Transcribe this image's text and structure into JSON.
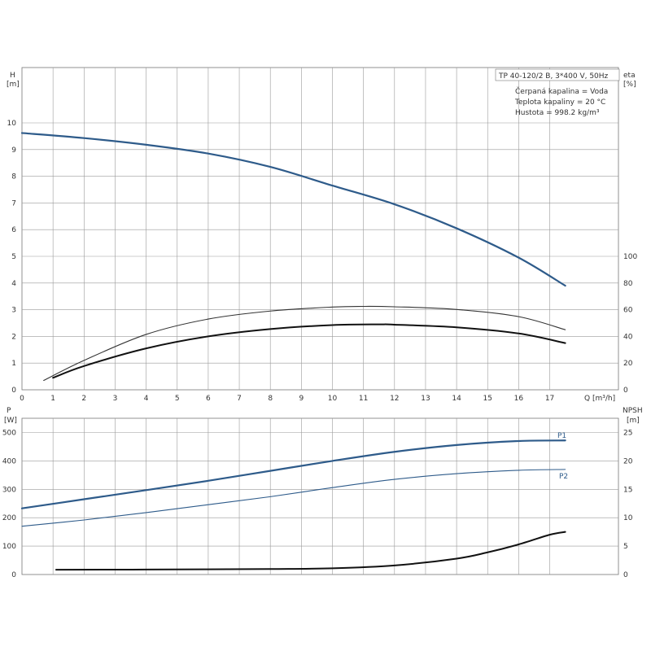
{
  "chart_data": [
    {
      "type": "line",
      "panel": "top",
      "info": {
        "model": "TP 40-120/2 B, 3*400 V, 50Hz",
        "liquid": "Čerpaná kapalina = Voda",
        "temperature": "Teplota kapaliny = 20 °C",
        "density": "Hustota = 998.2 kg/m³"
      },
      "ylabel_left": {
        "name": "H",
        "unit": "[m]"
      },
      "ylabel_right": {
        "name": "eta",
        "unit": "[%]"
      },
      "xlabel": "Q [m³/h]",
      "xlim": [
        0,
        18.5
      ],
      "ylim_left": [
        0,
        11
      ],
      "ylim_right": [
        0,
        100
      ],
      "x_ticks": [
        "0",
        "1",
        "2",
        "3",
        "4",
        "5",
        "6",
        "7",
        "8",
        "9",
        "10",
        "11",
        "12",
        "13",
        "14",
        "15",
        "16",
        "17"
      ],
      "y_ticks_left": [
        "0",
        "1",
        "2",
        "3",
        "4",
        "5",
        "6",
        "7",
        "8",
        "9",
        "10"
      ],
      "y_ticks_right": [
        "0",
        "20",
        "40",
        "60",
        "80",
        "100"
      ],
      "series": [
        {
          "axis": "left",
          "color": "#2e5b8a",
          "width": 2.2,
          "points": [
            [
              0,
              9.62
            ],
            [
              2,
              9.43
            ],
            [
              4,
              9.18
            ],
            [
              6,
              8.85
            ],
            [
              8,
              8.35
            ],
            [
              10,
              7.65
            ],
            [
              12,
              6.95
            ],
            [
              14,
              6.05
            ],
            [
              16,
              4.95
            ],
            [
              17.5,
              3.9
            ]
          ]
        },
        {
          "axis": "right",
          "color": "#333333",
          "width": 1.1,
          "points": [
            [
              0.7,
              7.0
            ],
            [
              2,
              22.0
            ],
            [
              4,
              41.5
            ],
            [
              6,
              53.0
            ],
            [
              8,
              59.0
            ],
            [
              10,
              62.0
            ],
            [
              11,
              62.5
            ],
            [
              12,
              62.2
            ],
            [
              14,
              60.2
            ],
            [
              16,
              54.8
            ],
            [
              17.5,
              45.0
            ]
          ]
        },
        {
          "axis": "right",
          "color": "#111111",
          "width": 2.0,
          "points": [
            [
              1,
              9.0
            ],
            [
              2,
              17.8
            ],
            [
              4,
              31.0
            ],
            [
              6,
              40.0
            ],
            [
              8,
              45.5
            ],
            [
              10,
              48.5
            ],
            [
              11.5,
              49.0
            ],
            [
              12,
              48.8
            ],
            [
              14,
              46.8
            ],
            [
              16,
              42.2
            ],
            [
              17.5,
              35.0
            ]
          ]
        }
      ]
    },
    {
      "type": "line",
      "panel": "bottom",
      "ylabel_left": {
        "name": "P",
        "unit": "[W]"
      },
      "ylabel_right": {
        "name": "NPSH",
        "unit": "[m]"
      },
      "xlim": [
        0,
        18.5
      ],
      "ylim_left": [
        0,
        540
      ],
      "ylim_right": [
        0,
        27
      ],
      "y_ticks_left": [
        "0",
        "100",
        "200",
        "300",
        "400",
        "500"
      ],
      "y_ticks_right": [
        "0",
        "5",
        "10",
        "15",
        "20",
        "25"
      ],
      "series": [
        {
          "name": "P1",
          "axis": "left",
          "color": "#2e5b8a",
          "width": 2.2,
          "points": [
            [
              0,
              233
            ],
            [
              2,
              265
            ],
            [
              4,
              297
            ],
            [
              6,
              330
            ],
            [
              8,
              365
            ],
            [
              10,
              400
            ],
            [
              12,
              432
            ],
            [
              14,
              456
            ],
            [
              16,
              470
            ],
            [
              17.5,
              472
            ]
          ]
        },
        {
          "name": "P2",
          "axis": "left",
          "color": "#2e5b8a",
          "width": 1.1,
          "points": [
            [
              0,
              170
            ],
            [
              2,
              192
            ],
            [
              4,
              218
            ],
            [
              6,
              246
            ],
            [
              8,
              274
            ],
            [
              10,
              306
            ],
            [
              12,
              335
            ],
            [
              14,
              355
            ],
            [
              16,
              367
            ],
            [
              17.5,
              370
            ]
          ]
        },
        {
          "axis": "right",
          "color": "#111111",
          "width": 2.0,
          "points": [
            [
              1.1,
              0.85
            ],
            [
              4,
              0.87
            ],
            [
              8,
              0.97
            ],
            [
              10,
              1.1
            ],
            [
              12,
              1.6
            ],
            [
              14,
              2.8
            ],
            [
              15,
              3.9
            ],
            [
              16,
              5.3
            ],
            [
              17,
              7.0
            ],
            [
              17.5,
              7.5
            ]
          ]
        }
      ]
    }
  ]
}
